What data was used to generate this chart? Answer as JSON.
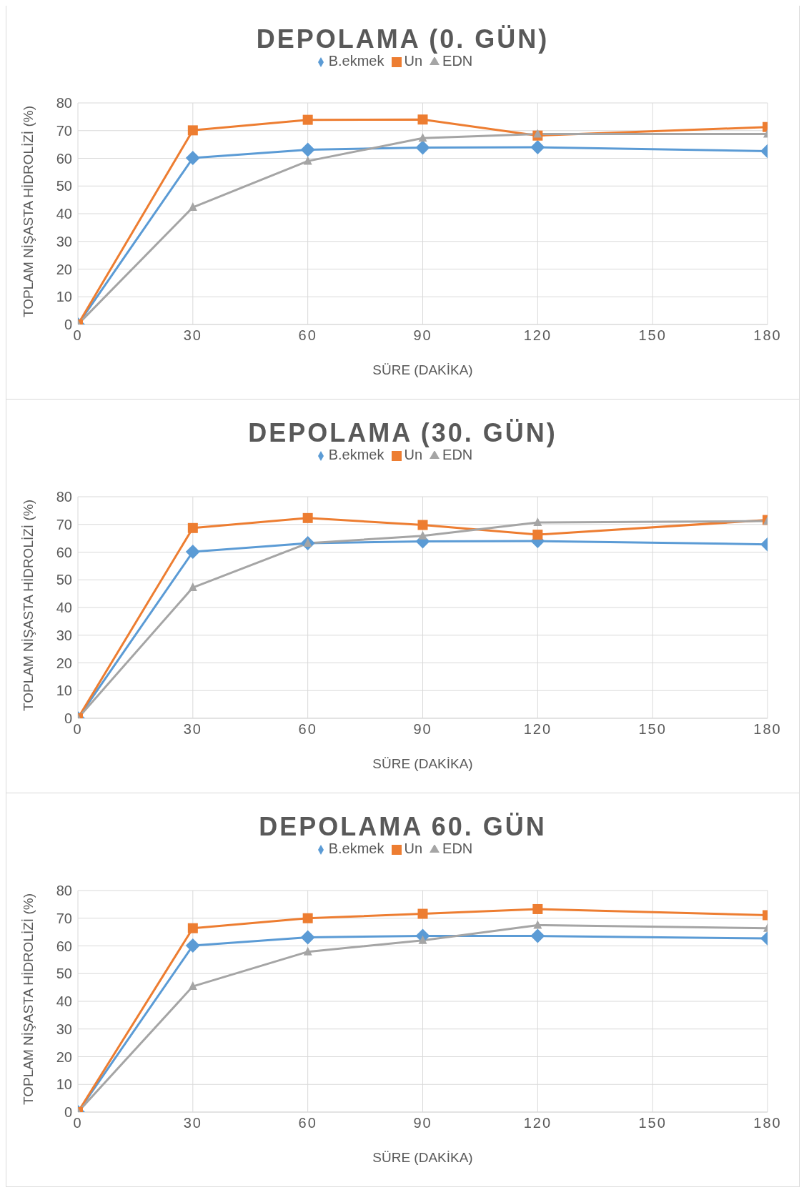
{
  "chart_data": [
    {
      "type": "line",
      "title": "DEPOLAMA (0. GÜN)",
      "xlabel": "SÜRE (DAKİKA)",
      "ylabel": "TOPLAM NİŞASTA HİDROLİZİ (%)",
      "x": [
        0,
        30,
        60,
        90,
        120,
        180
      ],
      "xlim": [
        0,
        180
      ],
      "xticks": [
        0,
        30,
        60,
        90,
        120,
        150,
        180
      ],
      "ylim": [
        0,
        80
      ],
      "yticks": [
        0,
        10,
        20,
        30,
        40,
        50,
        60,
        70,
        80
      ],
      "grid": true,
      "legend": "top",
      "series": [
        {
          "name": "B.ekmek",
          "color": "#5b9bd5",
          "marker": "diamond",
          "values": [
            0,
            60.1,
            63.1,
            63.9,
            64,
            62.6
          ]
        },
        {
          "name": "Un",
          "color": "#ed7d31",
          "marker": "square",
          "values": [
            0,
            70.1,
            73.9,
            74,
            68.2,
            71.3
          ]
        },
        {
          "name": "EDN",
          "color": "#a5a5a5",
          "marker": "triangle",
          "values": [
            0,
            42.3,
            59,
            67.3,
            68.8,
            68.8
          ]
        }
      ]
    },
    {
      "type": "line",
      "title": "DEPOLAMA (30. GÜN)",
      "xlabel": "SÜRE (DAKİKA)",
      "ylabel": "TOPLAM NİŞASTA HİDROLİZİ (%)",
      "x": [
        0,
        30,
        60,
        90,
        120,
        180
      ],
      "xlim": [
        0,
        180
      ],
      "xticks": [
        0,
        30,
        60,
        90,
        120,
        150,
        180
      ],
      "ylim": [
        0,
        80
      ],
      "yticks": [
        0,
        10,
        20,
        30,
        40,
        50,
        60,
        70,
        80
      ],
      "grid": true,
      "legend": "top",
      "series": [
        {
          "name": "B.ekmek",
          "color": "#5b9bd5",
          "marker": "diamond",
          "values": [
            0,
            60.1,
            63.2,
            63.9,
            64,
            62.8
          ]
        },
        {
          "name": "Un",
          "color": "#ed7d31",
          "marker": "square",
          "values": [
            0,
            68.7,
            72.3,
            69.8,
            66.3,
            71.6
          ]
        },
        {
          "name": "EDN",
          "color": "#a5a5a5",
          "marker": "triangle",
          "values": [
            0,
            47.2,
            63.2,
            65.9,
            70.7,
            71.2
          ]
        }
      ]
    },
    {
      "type": "line",
      "title": "DEPOLAMA 60. GÜN",
      "xlabel": "SÜRE (DAKİKA)",
      "ylabel": "TOPLAM NİŞASTA HİDROLİZİ (%)",
      "x": [
        0,
        30,
        60,
        90,
        120,
        180
      ],
      "xlim": [
        0,
        180
      ],
      "xticks": [
        0,
        30,
        60,
        90,
        120,
        150,
        180
      ],
      "ylim": [
        0,
        80
      ],
      "yticks": [
        0,
        10,
        20,
        30,
        40,
        50,
        60,
        70,
        80
      ],
      "grid": true,
      "legend": "top",
      "series": [
        {
          "name": "B.ekmek",
          "color": "#5b9bd5",
          "marker": "diamond",
          "values": [
            0,
            60.1,
            63.1,
            63.6,
            63.6,
            62.7
          ]
        },
        {
          "name": "Un",
          "color": "#ed7d31",
          "marker": "square",
          "values": [
            0,
            66.4,
            70,
            71.6,
            73.3,
            71.1
          ]
        },
        {
          "name": "EDN",
          "color": "#a5a5a5",
          "marker": "triangle",
          "values": [
            0,
            45.4,
            57.9,
            62,
            67.5,
            66.4
          ]
        }
      ]
    }
  ]
}
